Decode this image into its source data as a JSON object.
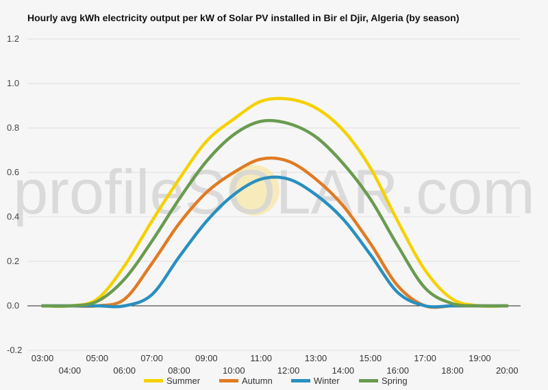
{
  "chart_data": {
    "type": "line",
    "title": "Hourly avg kWh electricity output per kW of Solar PV installed in Bir el Djir, Algeria (by season)",
    "watermark": "profileSOLAR.com",
    "xlabel": "",
    "ylabel": "",
    "ylim": [
      -0.2,
      1.2
    ],
    "yticks": [
      "1.2",
      "1.0",
      "0.8",
      "0.6",
      "0.4",
      "0.2",
      "0.0",
      "-0.2"
    ],
    "ytick_values": [
      1.2,
      1.0,
      0.8,
      0.6,
      0.4,
      0.2,
      0.0,
      -0.2
    ],
    "x": [
      "03:00",
      "04:00",
      "05:00",
      "06:00",
      "07:00",
      "08:00",
      "09:00",
      "10:00",
      "11:00",
      "12:00",
      "13:00",
      "14:00",
      "15:00",
      "16:00",
      "17:00",
      "18:00",
      "19:00",
      "20:00"
    ],
    "grid": true,
    "legend_position": "bottom",
    "series": [
      {
        "name": "Summer",
        "color": "#f5d100",
        "values": [
          0.0,
          0.0,
          0.03,
          0.18,
          0.38,
          0.57,
          0.74,
          0.84,
          0.92,
          0.93,
          0.89,
          0.79,
          0.62,
          0.38,
          0.16,
          0.03,
          0.0,
          0.0
        ]
      },
      {
        "name": "Autumn",
        "color": "#e07b24",
        "values": [
          0.0,
          0.0,
          0.0,
          0.03,
          0.19,
          0.37,
          0.51,
          0.6,
          0.66,
          0.65,
          0.57,
          0.45,
          0.28,
          0.09,
          0.0,
          0.0,
          0.0,
          0.0
        ]
      },
      {
        "name": "Winter",
        "color": "#2a8fbf",
        "values": [
          0.0,
          0.0,
          0.0,
          0.0,
          0.05,
          0.22,
          0.38,
          0.5,
          0.57,
          0.57,
          0.5,
          0.39,
          0.23,
          0.06,
          0.0,
          0.0,
          0.0,
          0.0
        ]
      },
      {
        "name": "Spring",
        "color": "#6a9b50",
        "values": [
          0.0,
          0.0,
          0.02,
          0.12,
          0.29,
          0.48,
          0.65,
          0.77,
          0.83,
          0.82,
          0.76,
          0.64,
          0.48,
          0.27,
          0.08,
          0.01,
          0.0,
          0.0
        ]
      }
    ]
  }
}
